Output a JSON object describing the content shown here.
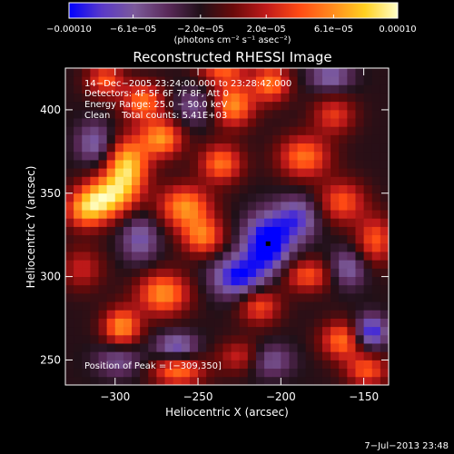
{
  "chart_data": {
    "type": "heatmap",
    "title": "Reconstructed RHESSI Image",
    "xlabel": "Heliocentric X (arcsec)",
    "ylabel": "Heliocentric Y (arcsec)",
    "xlim": [
      -330,
      -135
    ],
    "ylim": [
      235,
      425
    ],
    "x_ticks": [
      -300,
      -250,
      -200,
      -150
    ],
    "x_tick_labels": [
      "−300",
      "−250",
      "−200",
      "−150"
    ],
    "y_ticks": [
      250,
      300,
      350,
      400
    ],
    "y_tick_labels": [
      "250",
      "300",
      "350",
      "400"
    ],
    "colorbar": {
      "range": [
        -0.0001,
        0.0001
      ],
      "ticks": [
        -0.0001,
        -6.1e-05,
        -2e-05,
        2e-05,
        6.1e-05,
        0.0001
      ],
      "tick_labels": [
        "−0.00010",
        "−6.1e−05",
        "−2.0e−05",
        "2.0e−05",
        "6.1e−05",
        "0.00010"
      ],
      "units": "(photons cm⁻² s⁻¹ asec⁻²)",
      "colors": [
        "#0000ff",
        "#5a39c8",
        "#7c5a9a",
        "#5a2a5a",
        "#201018",
        "#6a0a0a",
        "#c01a1a",
        "#ff4a14",
        "#ff8a1e",
        "#ffd020",
        "#ffffc8"
      ]
    },
    "annotations": {
      "time": "14−Dec−2005 23:24:00.000 to 23:28:42.000",
      "detectors": "Detectors: 4F 5F 6F 7F 8F, Att 0",
      "energy": "Energy Range: 25.0 − 50.0 keV",
      "clean": "Clean    Total counts: 5.41E+03",
      "peak": "Position of Peak = [−309,350]"
    },
    "peak_position": [
      -309,
      350
    ],
    "footer_date": "7−Jul−2013 23:48",
    "map": {
      "positive_blobs": [
        {
          "x": -293,
          "y": 366,
          "amp": 0.0001,
          "sx": 9,
          "sy": 12
        },
        {
          "x": -305,
          "y": 348,
          "amp": 9e-05,
          "sx": 11,
          "sy": 9
        },
        {
          "x": -318,
          "y": 340,
          "amp": 7e-05,
          "sx": 9,
          "sy": 8
        },
        {
          "x": -272,
          "y": 383,
          "amp": 8e-05,
          "sx": 9,
          "sy": 8
        },
        {
          "x": -283,
          "y": 405,
          "amp": 7e-05,
          "sx": 9,
          "sy": 8
        },
        {
          "x": -306,
          "y": 418,
          "amp": 6e-05,
          "sx": 8,
          "sy": 7
        },
        {
          "x": -258,
          "y": 342,
          "amp": 8e-05,
          "sx": 11,
          "sy": 9
        },
        {
          "x": -247,
          "y": 324,
          "amp": 7e-05,
          "sx": 9,
          "sy": 8
        },
        {
          "x": -236,
          "y": 368,
          "amp": 7e-05,
          "sx": 9,
          "sy": 8
        },
        {
          "x": -229,
          "y": 403,
          "amp": 8e-05,
          "sx": 9,
          "sy": 9
        },
        {
          "x": -206,
          "y": 416,
          "amp": 7e-05,
          "sx": 8,
          "sy": 8
        },
        {
          "x": -186,
          "y": 372,
          "amp": 7e-05,
          "sx": 11,
          "sy": 9
        },
        {
          "x": -163,
          "y": 345,
          "amp": 6e-05,
          "sx": 10,
          "sy": 9
        },
        {
          "x": -143,
          "y": 322,
          "amp": 6e-05,
          "sx": 8,
          "sy": 10
        },
        {
          "x": -184,
          "y": 301,
          "amp": 6e-05,
          "sx": 11,
          "sy": 7
        },
        {
          "x": -213,
          "y": 283,
          "amp": 6e-05,
          "sx": 9,
          "sy": 8
        },
        {
          "x": -271,
          "y": 290,
          "amp": 8e-05,
          "sx": 11,
          "sy": 9
        },
        {
          "x": -296,
          "y": 270,
          "amp": 8e-05,
          "sx": 8,
          "sy": 8
        },
        {
          "x": -320,
          "y": 305,
          "amp": 4e-05,
          "sx": 9,
          "sy": 9
        },
        {
          "x": -262,
          "y": 244,
          "amp": 7e-05,
          "sx": 11,
          "sy": 7
        },
        {
          "x": -223,
          "y": 252,
          "amp": 5e-05,
          "sx": 10,
          "sy": 7
        },
        {
          "x": -163,
          "y": 262,
          "amp": 7e-05,
          "sx": 9,
          "sy": 8
        },
        {
          "x": -148,
          "y": 244,
          "amp": 6e-05,
          "sx": 9,
          "sy": 7
        },
        {
          "x": -168,
          "y": 397,
          "amp": 5e-05,
          "sx": 9,
          "sy": 8
        },
        {
          "x": -235,
          "y": 425,
          "amp": 6e-05,
          "sx": 10,
          "sy": 7
        }
      ],
      "negative_blobs": [
        {
          "x": -208,
          "y": 320,
          "amp": -0.0001,
          "sx": 10,
          "sy": 12
        },
        {
          "x": -226,
          "y": 300,
          "amp": -8e-05,
          "sx": 11,
          "sy": 9
        },
        {
          "x": -190,
          "y": 335,
          "amp": -6e-05,
          "sx": 9,
          "sy": 9
        },
        {
          "x": -146,
          "y": 267,
          "amp": -8e-05,
          "sx": 7,
          "sy": 7
        },
        {
          "x": -263,
          "y": 258,
          "amp": -6e-05,
          "sx": 9,
          "sy": 6
        },
        {
          "x": -208,
          "y": 250,
          "amp": -5e-05,
          "sx": 10,
          "sy": 7
        },
        {
          "x": -312,
          "y": 380,
          "amp": -5e-05,
          "sx": 8,
          "sy": 9
        },
        {
          "x": -285,
          "y": 323,
          "amp": -5e-05,
          "sx": 8,
          "sy": 10
        },
        {
          "x": -252,
          "y": 402,
          "amp": -4e-05,
          "sx": 9,
          "sy": 8
        },
        {
          "x": -160,
          "y": 305,
          "amp": -5e-05,
          "sx": 8,
          "sy": 8
        },
        {
          "x": -170,
          "y": 420,
          "amp": -5e-05,
          "sx": 9,
          "sy": 6
        },
        {
          "x": -298,
          "y": 250,
          "amp": -4e-05,
          "sx": 10,
          "sy": 7
        }
      ]
    }
  }
}
